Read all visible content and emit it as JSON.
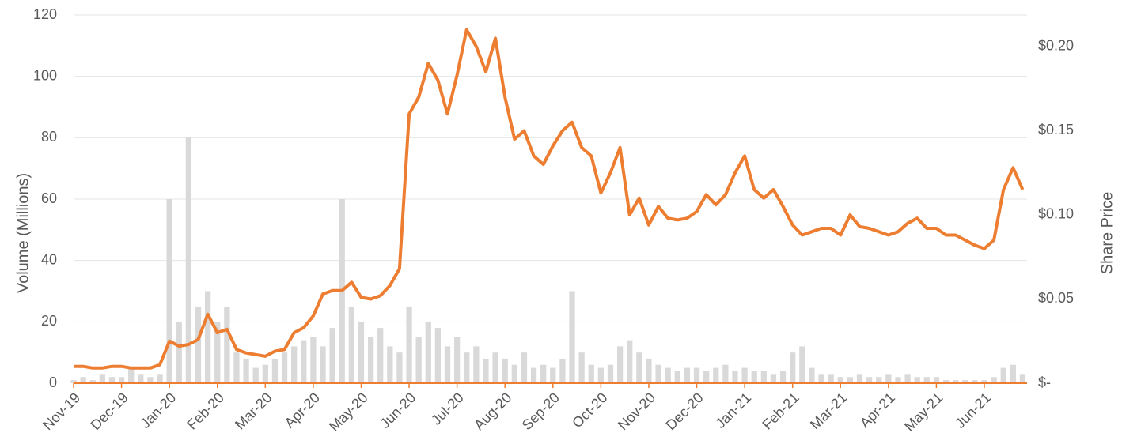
{
  "chart_data": {
    "type": "combo",
    "ylabel": "Volume (Millions)",
    "y2label": "Share Price",
    "categories": [
      "Nov-19",
      null,
      null,
      null,
      null,
      "Dec-19",
      null,
      null,
      null,
      null,
      "Jan-20",
      null,
      null,
      null,
      null,
      "Feb-20",
      null,
      null,
      null,
      null,
      "Mar-20",
      null,
      null,
      null,
      null,
      "Apr-20",
      null,
      null,
      null,
      null,
      "May-20",
      null,
      null,
      null,
      null,
      "Jun-20",
      null,
      null,
      null,
      null,
      "Jul-20",
      null,
      null,
      null,
      null,
      "Aug-20",
      null,
      null,
      null,
      null,
      "Sep-20",
      null,
      null,
      null,
      null,
      "Oct-20",
      null,
      null,
      null,
      null,
      "Nov-20",
      null,
      null,
      null,
      null,
      "Dec-20",
      null,
      null,
      null,
      null,
      "Jan-21",
      null,
      null,
      null,
      null,
      "Feb-21",
      null,
      null,
      null,
      null,
      "Mar-21",
      null,
      null,
      null,
      null,
      "Apr-21",
      null,
      null,
      null,
      null,
      "May-21",
      null,
      null,
      null,
      null,
      "Jun-21",
      null,
      null,
      null,
      null
    ],
    "series": [
      {
        "type": "bar",
        "color": "#d9d9d9",
        "values": [
          1,
          2,
          1,
          3,
          2,
          2,
          5,
          3,
          2,
          3,
          60,
          20,
          80,
          25,
          30,
          20,
          25,
          10,
          8,
          5,
          6,
          8,
          10,
          12,
          14,
          15,
          12,
          18,
          60,
          25,
          20,
          15,
          18,
          12,
          10,
          25,
          15,
          20,
          18,
          12,
          15,
          10,
          12,
          8,
          10,
          8,
          6,
          10,
          5,
          6,
          5,
          8,
          30,
          10,
          6,
          5,
          6,
          12,
          14,
          10,
          8,
          6,
          5,
          4,
          5,
          5,
          4,
          5,
          6,
          4,
          5,
          4,
          4,
          3,
          4,
          10,
          12,
          5,
          3,
          3,
          2,
          2,
          3,
          2,
          2,
          3,
          2,
          3,
          2,
          2,
          2,
          1,
          1,
          1,
          1,
          1,
          2,
          5,
          6,
          3
        ]
      },
      {
        "type": "line",
        "axis": "y2",
        "color": "#ed7d31",
        "values": [
          0.01,
          0.01,
          0.009,
          0.009,
          0.01,
          0.01,
          0.009,
          0.009,
          0.009,
          0.011,
          0.025,
          0.022,
          0.023,
          0.026,
          0.041,
          0.03,
          0.032,
          0.02,
          0.018,
          0.017,
          0.016,
          0.019,
          0.02,
          0.03,
          0.033,
          0.04,
          0.053,
          0.055,
          0.055,
          0.06,
          0.051,
          0.05,
          0.052,
          0.058,
          0.068,
          0.16,
          0.17,
          0.19,
          0.18,
          0.16,
          0.183,
          0.21,
          0.2,
          0.185,
          0.205,
          0.17,
          0.145,
          0.15,
          0.135,
          0.13,
          0.141,
          0.15,
          0.155,
          0.14,
          0.135,
          0.113,
          0.125,
          0.14,
          0.1,
          0.11,
          0.094,
          0.105,
          0.098,
          0.097,
          0.098,
          0.102,
          0.112,
          0.106,
          0.112,
          0.125,
          0.135,
          0.115,
          0.11,
          0.115,
          0.105,
          0.094,
          0.088,
          0.09,
          0.092,
          0.092,
          0.088,
          0.1,
          0.093,
          0.092,
          0.09,
          0.088,
          0.09,
          0.095,
          0.098,
          0.092,
          0.092,
          0.088,
          0.088,
          0.085,
          0.082,
          0.08,
          0.085,
          0.115,
          0.128,
          0.115
        ]
      }
    ],
    "ylim": [
      0,
      120
    ],
    "yticks": [
      0,
      20,
      40,
      60,
      80,
      100,
      120
    ],
    "y2lim": [
      0,
      0.21875
    ],
    "y2ticks": [
      {
        "value": 0,
        "label": "$-"
      },
      {
        "value": 0.05,
        "label": "$0.05"
      },
      {
        "value": 0.1,
        "label": "$0.10"
      },
      {
        "value": 0.15,
        "label": "$0.15"
      },
      {
        "value": 0.2,
        "label": "$0.20"
      }
    ],
    "grid": true
  }
}
